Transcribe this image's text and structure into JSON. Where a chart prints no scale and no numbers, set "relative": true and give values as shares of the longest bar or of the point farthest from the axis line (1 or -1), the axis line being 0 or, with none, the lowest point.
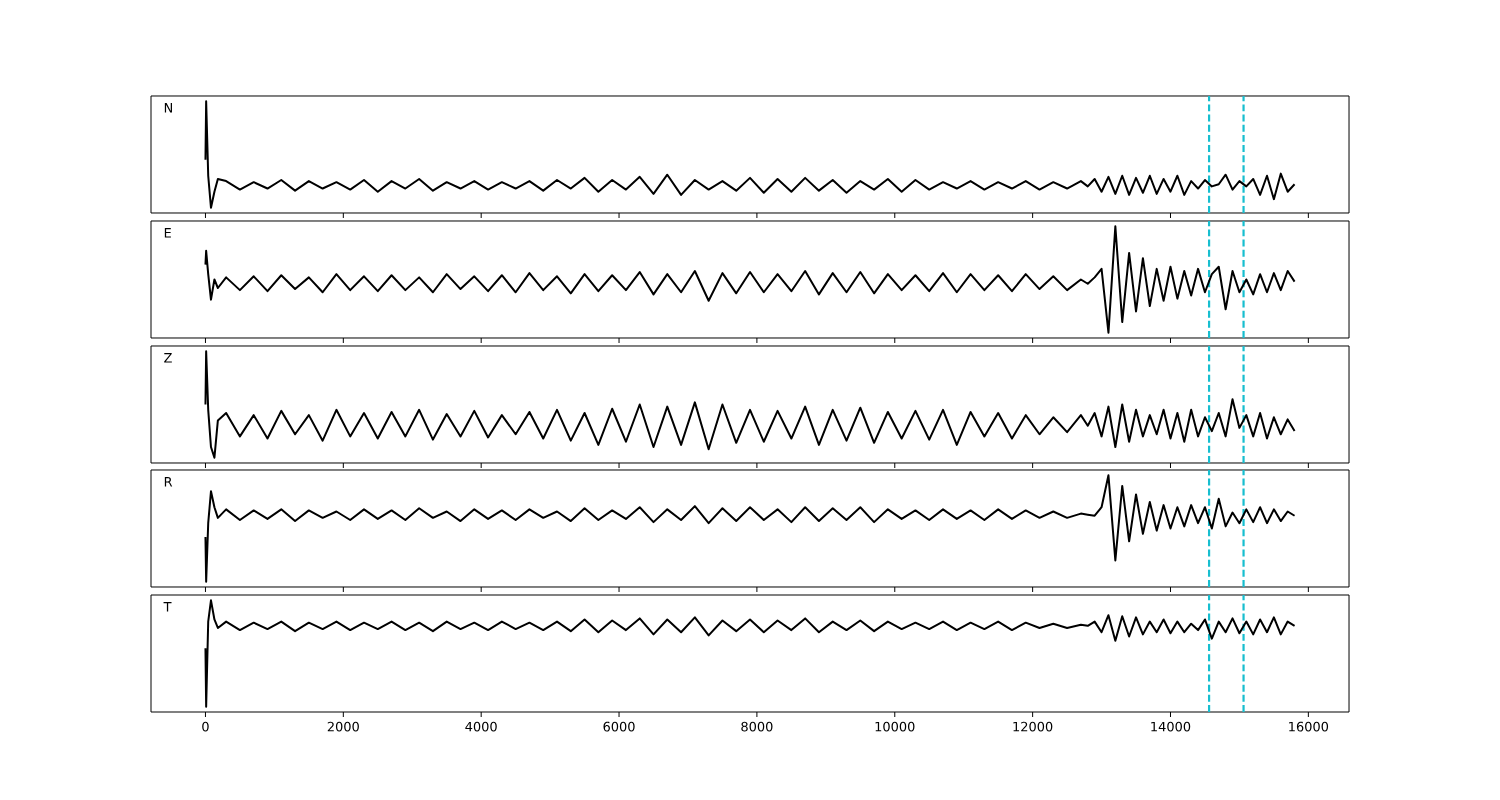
{
  "chart_data": [
    {
      "type": "line",
      "title": "N",
      "relative": true,
      "tick_labels": false,
      "xlim": [
        -790,
        16590
      ],
      "xticks": [
        0,
        2000,
        4000,
        6000,
        8000,
        10000,
        12000,
        14000,
        16000
      ],
      "ref_lines": [
        {
          "axis": "x",
          "value": 14560,
          "color": "#17becf",
          "line_style": "dashed"
        },
        {
          "axis": "x",
          "value": 15060,
          "color": "#17becf",
          "line_style": "dashed"
        }
      ],
      "x": [
        0,
        10,
        40,
        80,
        130,
        180,
        300,
        500,
        700,
        900,
        1100,
        1300,
        1500,
        1700,
        1900,
        2100,
        2300,
        2500,
        2700,
        2900,
        3100,
        3300,
        3500,
        3700,
        3900,
        4100,
        4300,
        4500,
        4700,
        4900,
        5100,
        5300,
        5500,
        5700,
        5900,
        6100,
        6300,
        6500,
        6700,
        6900,
        7100,
        7300,
        7500,
        7700,
        7900,
        8100,
        8300,
        8500,
        8700,
        8900,
        9100,
        9300,
        9500,
        9700,
        9900,
        10100,
        10300,
        10500,
        10700,
        10900,
        11100,
        11300,
        11500,
        11700,
        11900,
        12100,
        12300,
        12500,
        12700,
        12800,
        12900,
        13000,
        13100,
        13200,
        13300,
        13400,
        13500,
        13600,
        13700,
        13800,
        13900,
        14000,
        14100,
        14200,
        14300,
        14400,
        14500,
        14600,
        14700,
        14800,
        14900,
        15000,
        15100,
        15200,
        15300,
        15400,
        15500,
        15600,
        15700,
        15800
      ],
      "series": [
        {
          "color": "#000000",
          "values": [
            0.45,
            1,
            0.3,
            0,
            0.15,
            0.27,
            0.25,
            0.17,
            0.24,
            0.18,
            0.26,
            0.16,
            0.25,
            0.18,
            0.24,
            0.17,
            0.26,
            0.15,
            0.25,
            0.18,
            0.27,
            0.16,
            0.24,
            0.18,
            0.25,
            0.17,
            0.24,
            0.18,
            0.25,
            0.16,
            0.26,
            0.18,
            0.28,
            0.15,
            0.26,
            0.17,
            0.29,
            0.13,
            0.31,
            0.12,
            0.26,
            0.17,
            0.25,
            0.16,
            0.28,
            0.14,
            0.27,
            0.15,
            0.28,
            0.16,
            0.26,
            0.14,
            0.25,
            0.17,
            0.27,
            0.15,
            0.26,
            0.17,
            0.24,
            0.18,
            0.25,
            0.17,
            0.24,
            0.18,
            0.25,
            0.17,
            0.24,
            0.18,
            0.25,
            0.2,
            0.27,
            0.15,
            0.29,
            0.13,
            0.3,
            0.12,
            0.28,
            0.14,
            0.3,
            0.13,
            0.27,
            0.15,
            0.3,
            0.12,
            0.25,
            0.18,
            0.26,
            0.2,
            0.22,
            0.31,
            0.17,
            0.25,
            0.2,
            0.27,
            0.12,
            0.3,
            0.08,
            0.32,
            0.15,
            0.22
          ]
        }
      ]
    },
    {
      "type": "line",
      "title": "E",
      "relative": true,
      "tick_labels": false,
      "xlim": [
        -790,
        16590
      ],
      "xticks": [
        0,
        2000,
        4000,
        6000,
        8000,
        10000,
        12000,
        14000,
        16000
      ],
      "ref_lines": [
        {
          "axis": "x",
          "value": 14560,
          "color": "#17becf",
          "line_style": "dashed"
        },
        {
          "axis": "x",
          "value": 15060,
          "color": "#17becf",
          "line_style": "dashed"
        }
      ],
      "x": [
        0,
        10,
        40,
        80,
        130,
        180,
        300,
        500,
        700,
        900,
        1100,
        1300,
        1500,
        1700,
        1900,
        2100,
        2300,
        2500,
        2700,
        2900,
        3100,
        3300,
        3500,
        3700,
        3900,
        4100,
        4300,
        4500,
        4700,
        4900,
        5100,
        5300,
        5500,
        5700,
        5900,
        6100,
        6300,
        6500,
        6700,
        6900,
        7100,
        7300,
        7500,
        7700,
        7900,
        8100,
        8300,
        8500,
        8700,
        8900,
        9100,
        9300,
        9500,
        9700,
        9900,
        10100,
        10300,
        10500,
        10700,
        10900,
        11100,
        11300,
        11500,
        11700,
        11900,
        12100,
        12300,
        12500,
        12700,
        12800,
        12900,
        13000,
        13100,
        13200,
        13300,
        13400,
        13500,
        13600,
        13700,
        13800,
        13900,
        14000,
        14100,
        14200,
        14300,
        14400,
        14500,
        14600,
        14700,
        14800,
        14900,
        15000,
        15100,
        15200,
        15300,
        15400,
        15500,
        15600,
        15700,
        15800
      ],
      "series": [
        {
          "color": "#000000",
          "values": [
            0.64,
            0.77,
            0.55,
            0.31,
            0.5,
            0.42,
            0.52,
            0.4,
            0.53,
            0.39,
            0.54,
            0.41,
            0.52,
            0.38,
            0.55,
            0.4,
            0.53,
            0.39,
            0.54,
            0.4,
            0.52,
            0.38,
            0.55,
            0.41,
            0.53,
            0.39,
            0.54,
            0.38,
            0.56,
            0.4,
            0.53,
            0.37,
            0.55,
            0.39,
            0.54,
            0.4,
            0.57,
            0.36,
            0.55,
            0.38,
            0.58,
            0.3,
            0.56,
            0.37,
            0.57,
            0.38,
            0.55,
            0.39,
            0.58,
            0.36,
            0.56,
            0.38,
            0.57,
            0.37,
            0.55,
            0.4,
            0.54,
            0.39,
            0.56,
            0.38,
            0.55,
            0.4,
            0.54,
            0.39,
            0.55,
            0.41,
            0.53,
            0.4,
            0.5,
            0.46,
            0.52,
            0.6,
            0.0,
            1.0,
            0.1,
            0.75,
            0.2,
            0.7,
            0.25,
            0.6,
            0.3,
            0.62,
            0.32,
            0.58,
            0.35,
            0.6,
            0.38,
            0.55,
            0.62,
            0.22,
            0.58,
            0.38,
            0.5,
            0.36,
            0.55,
            0.38,
            0.56,
            0.4,
            0.58,
            0.48
          ]
        }
      ]
    },
    {
      "type": "line",
      "title": "Z",
      "relative": true,
      "tick_labels": false,
      "xlim": [
        -790,
        16590
      ],
      "xticks": [
        0,
        2000,
        4000,
        6000,
        8000,
        10000,
        12000,
        14000,
        16000
      ],
      "ref_lines": [
        {
          "axis": "x",
          "value": 14560,
          "color": "#17becf",
          "line_style": "dashed"
        },
        {
          "axis": "x",
          "value": 15060,
          "color": "#17becf",
          "line_style": "dashed"
        }
      ],
      "x": [
        0,
        10,
        40,
        80,
        130,
        180,
        300,
        500,
        700,
        900,
        1100,
        1300,
        1500,
        1700,
        1900,
        2100,
        2300,
        2500,
        2700,
        2900,
        3100,
        3300,
        3500,
        3700,
        3900,
        4100,
        4300,
        4500,
        4700,
        4900,
        5100,
        5300,
        5500,
        5700,
        5900,
        6100,
        6300,
        6500,
        6700,
        6900,
        7100,
        7300,
        7500,
        7700,
        7900,
        8100,
        8300,
        8500,
        8700,
        8900,
        9100,
        9300,
        9500,
        9700,
        9900,
        10100,
        10300,
        10500,
        10700,
        10900,
        11100,
        11300,
        11500,
        11700,
        11900,
        12100,
        12300,
        12500,
        12700,
        12800,
        12900,
        13000,
        13100,
        13200,
        13300,
        13400,
        13500,
        13600,
        13700,
        13800,
        13900,
        14000,
        14100,
        14200,
        14300,
        14400,
        14500,
        14600,
        14700,
        14800,
        14900,
        15000,
        15100,
        15200,
        15300,
        15400,
        15500,
        15600,
        15700,
        15800
      ],
      "series": [
        {
          "color": "#000000",
          "values": [
            0.5,
            1.0,
            0.45,
            0.1,
            0.0,
            0.35,
            0.42,
            0.2,
            0.4,
            0.18,
            0.44,
            0.22,
            0.4,
            0.16,
            0.45,
            0.2,
            0.42,
            0.18,
            0.43,
            0.2,
            0.45,
            0.17,
            0.41,
            0.2,
            0.44,
            0.19,
            0.4,
            0.22,
            0.43,
            0.18,
            0.45,
            0.16,
            0.42,
            0.12,
            0.46,
            0.15,
            0.5,
            0.1,
            0.48,
            0.12,
            0.52,
            0.08,
            0.5,
            0.14,
            0.45,
            0.15,
            0.44,
            0.18,
            0.48,
            0.12,
            0.45,
            0.16,
            0.47,
            0.14,
            0.43,
            0.18,
            0.44,
            0.17,
            0.45,
            0.12,
            0.43,
            0.2,
            0.42,
            0.18,
            0.4,
            0.22,
            0.38,
            0.24,
            0.4,
            0.3,
            0.42,
            0.2,
            0.48,
            0.1,
            0.5,
            0.15,
            0.45,
            0.2,
            0.4,
            0.22,
            0.45,
            0.18,
            0.42,
            0.15,
            0.45,
            0.2,
            0.38,
            0.25,
            0.42,
            0.2,
            0.55,
            0.28,
            0.4,
            0.2,
            0.42,
            0.18,
            0.38,
            0.22,
            0.36,
            0.25
          ]
        }
      ]
    },
    {
      "type": "line",
      "title": "R",
      "relative": true,
      "tick_labels": false,
      "xlim": [
        -790,
        16590
      ],
      "xticks": [
        0,
        2000,
        4000,
        6000,
        8000,
        10000,
        12000,
        14000,
        16000
      ],
      "ref_lines": [
        {
          "axis": "x",
          "value": 14560,
          "color": "#17becf",
          "line_style": "dashed"
        },
        {
          "axis": "x",
          "value": 15060,
          "color": "#17becf",
          "line_style": "dashed"
        }
      ],
      "x": [
        0,
        10,
        40,
        80,
        130,
        180,
        300,
        500,
        700,
        900,
        1100,
        1300,
        1500,
        1700,
        1900,
        2100,
        2300,
        2500,
        2700,
        2900,
        3100,
        3300,
        3500,
        3700,
        3900,
        4100,
        4300,
        4500,
        4700,
        4900,
        5100,
        5300,
        5500,
        5700,
        5900,
        6100,
        6300,
        6500,
        6700,
        6900,
        7100,
        7300,
        7500,
        7700,
        7900,
        8100,
        8300,
        8500,
        8700,
        8900,
        9100,
        9300,
        9500,
        9700,
        9900,
        10100,
        10300,
        10500,
        10700,
        10900,
        11100,
        11300,
        11500,
        11700,
        11900,
        12100,
        12300,
        12500,
        12700,
        12800,
        12900,
        13000,
        13100,
        13200,
        13300,
        13400,
        13500,
        13600,
        13700,
        13800,
        13900,
        14000,
        14100,
        14200,
        14300,
        14400,
        14500,
        14600,
        14700,
        14800,
        14900,
        15000,
        15100,
        15200,
        15300,
        15400,
        15500,
        15600,
        15700,
        15800
      ],
      "series": [
        {
          "color": "#000000",
          "values": [
            0.42,
            0.0,
            0.55,
            0.85,
            0.7,
            0.6,
            0.68,
            0.58,
            0.67,
            0.59,
            0.68,
            0.57,
            0.67,
            0.6,
            0.66,
            0.58,
            0.68,
            0.59,
            0.67,
            0.58,
            0.69,
            0.6,
            0.66,
            0.57,
            0.68,
            0.59,
            0.67,
            0.58,
            0.68,
            0.6,
            0.66,
            0.57,
            0.69,
            0.58,
            0.67,
            0.59,
            0.7,
            0.56,
            0.68,
            0.58,
            0.71,
            0.55,
            0.69,
            0.57,
            0.7,
            0.58,
            0.68,
            0.56,
            0.7,
            0.57,
            0.69,
            0.58,
            0.7,
            0.56,
            0.68,
            0.59,
            0.67,
            0.58,
            0.68,
            0.59,
            0.67,
            0.58,
            0.68,
            0.59,
            0.67,
            0.6,
            0.66,
            0.6,
            0.64,
            0.63,
            0.62,
            0.7,
            1.0,
            0.2,
            0.9,
            0.38,
            0.82,
            0.45,
            0.75,
            0.48,
            0.72,
            0.5,
            0.7,
            0.52,
            0.72,
            0.55,
            0.7,
            0.5,
            0.78,
            0.52,
            0.65,
            0.55,
            0.68,
            0.56,
            0.7,
            0.55,
            0.68,
            0.57,
            0.66,
            0.62
          ]
        }
      ]
    },
    {
      "type": "line",
      "title": "T",
      "relative": true,
      "tick_labels": "x",
      "xlim": [
        -790,
        16590
      ],
      "xticks": [
        0,
        2000,
        4000,
        6000,
        8000,
        10000,
        12000,
        14000,
        16000
      ],
      "ref_lines": [
        {
          "axis": "x",
          "value": 14560,
          "color": "#17becf",
          "line_style": "dashed"
        },
        {
          "axis": "x",
          "value": 15060,
          "color": "#17becf",
          "line_style": "dashed"
        }
      ],
      "x": [
        0,
        10,
        40,
        80,
        130,
        180,
        300,
        500,
        700,
        900,
        1100,
        1300,
        1500,
        1700,
        1900,
        2100,
        2300,
        2500,
        2700,
        2900,
        3100,
        3300,
        3500,
        3700,
        3900,
        4100,
        4300,
        4500,
        4700,
        4900,
        5100,
        5300,
        5500,
        5700,
        5900,
        6100,
        6300,
        6500,
        6700,
        6900,
        7100,
        7300,
        7500,
        7700,
        7900,
        8100,
        8300,
        8500,
        8700,
        8900,
        9100,
        9300,
        9500,
        9700,
        9900,
        10100,
        10300,
        10500,
        10700,
        10900,
        11100,
        11300,
        11500,
        11700,
        11900,
        12100,
        12300,
        12500,
        12700,
        12800,
        12900,
        13000,
        13100,
        13200,
        13300,
        13400,
        13500,
        13600,
        13700,
        13800,
        13900,
        14000,
        14100,
        14200,
        14300,
        14400,
        14500,
        14600,
        14700,
        14800,
        14900,
        15000,
        15100,
        15200,
        15300,
        15400,
        15500,
        15600,
        15700,
        15800
      ],
      "series": [
        {
          "color": "#000000",
          "values": [
            0.55,
            0.0,
            0.8,
            1.0,
            0.82,
            0.74,
            0.8,
            0.72,
            0.79,
            0.73,
            0.8,
            0.71,
            0.79,
            0.73,
            0.8,
            0.72,
            0.79,
            0.73,
            0.8,
            0.72,
            0.79,
            0.71,
            0.8,
            0.73,
            0.79,
            0.72,
            0.8,
            0.73,
            0.79,
            0.72,
            0.8,
            0.71,
            0.82,
            0.7,
            0.81,
            0.72,
            0.83,
            0.68,
            0.82,
            0.7,
            0.84,
            0.67,
            0.81,
            0.71,
            0.82,
            0.7,
            0.81,
            0.72,
            0.83,
            0.7,
            0.8,
            0.72,
            0.81,
            0.71,
            0.8,
            0.73,
            0.79,
            0.73,
            0.8,
            0.72,
            0.79,
            0.73,
            0.8,
            0.72,
            0.79,
            0.74,
            0.78,
            0.74,
            0.77,
            0.76,
            0.8,
            0.7,
            0.86,
            0.62,
            0.85,
            0.66,
            0.84,
            0.68,
            0.8,
            0.7,
            0.82,
            0.69,
            0.8,
            0.7,
            0.78,
            0.72,
            0.82,
            0.64,
            0.8,
            0.7,
            0.83,
            0.69,
            0.8,
            0.68,
            0.82,
            0.7,
            0.84,
            0.68,
            0.8,
            0.76
          ]
        }
      ]
    }
  ]
}
